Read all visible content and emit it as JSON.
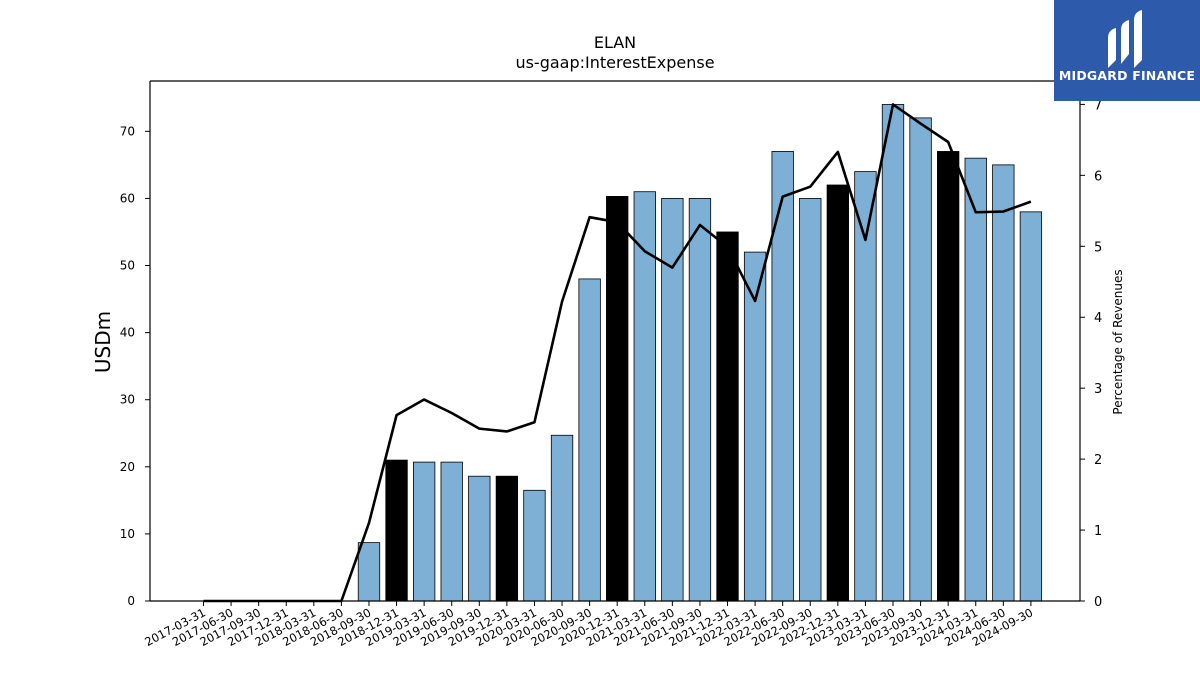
{
  "watermark": {
    "brand": "MIDGARD FINANCE"
  },
  "chart_data": {
    "type": "bar",
    "title": "ELAN",
    "subtitle": "us-gaap:InterestExpense",
    "ylabel": "USDm",
    "ylabel_right": "Percentage of Revenues",
    "ylim": [
      0,
      77.5
    ],
    "ylim_right": [
      0,
      7.33
    ],
    "yticks": [
      0,
      10,
      20,
      30,
      40,
      50,
      60,
      70
    ],
    "yticks_right": [
      0,
      1,
      2,
      3,
      4,
      5,
      6,
      7
    ],
    "categories": [
      "2017-03-31",
      "2017-06-30",
      "2017-09-30",
      "2017-12-31",
      "2018-03-31",
      "2018-06-30",
      "2018-09-30",
      "2018-12-31",
      "2019-03-31",
      "2019-06-30",
      "2019-09-30",
      "2019-12-31",
      "2020-03-31",
      "2020-06-30",
      "2020-09-30",
      "2020-12-31",
      "2021-03-31",
      "2021-06-30",
      "2021-09-30",
      "2021-12-31",
      "2022-03-31",
      "2022-06-30",
      "2022-09-30",
      "2022-12-31",
      "2023-03-31",
      "2023-06-30",
      "2023-09-30",
      "2023-12-31",
      "2024-03-31",
      "2024-06-30",
      "2024-09-30"
    ],
    "series": [
      {
        "kind": "bar",
        "values": [
          0,
          0,
          0,
          0,
          0,
          0,
          8.7,
          21,
          20.7,
          20.7,
          18.6,
          18.6,
          16.5,
          24.7,
          48,
          60.3,
          61,
          60,
          60,
          55,
          52,
          67,
          60,
          62,
          64,
          74,
          72,
          67,
          66,
          65,
          58
        ],
        "highlight": [
          false,
          false,
          false,
          false,
          false,
          false,
          false,
          true,
          false,
          false,
          false,
          true,
          false,
          false,
          false,
          true,
          false,
          false,
          false,
          true,
          false,
          false,
          false,
          true,
          false,
          false,
          false,
          true,
          false,
          false,
          false
        ],
        "color": "#7eb0d5",
        "highlight_color": "#000000"
      },
      {
        "kind": "line",
        "axis": "right",
        "values": [
          0,
          0,
          0,
          0,
          0,
          0,
          1.1,
          2.62,
          2.84,
          2.65,
          2.43,
          2.39,
          2.52,
          4.22,
          5.41,
          5.34,
          4.93,
          4.7,
          5.3,
          4.99,
          4.23,
          5.7,
          5.84,
          6.33,
          5.09,
          7.0,
          6.73,
          6.47,
          5.48,
          5.49,
          5.63
        ],
        "color": "#000000"
      }
    ],
    "grid": false
  }
}
